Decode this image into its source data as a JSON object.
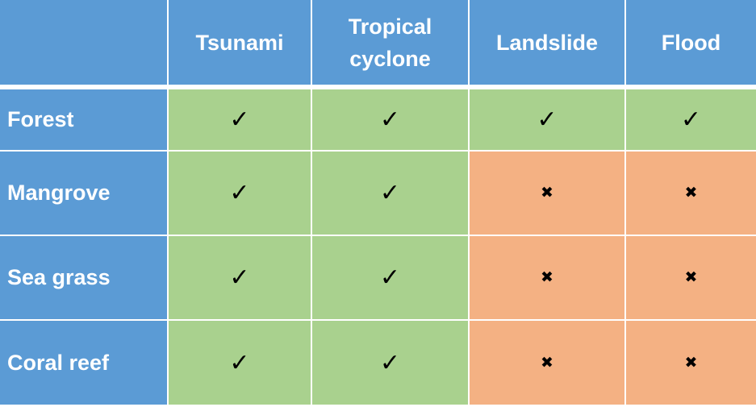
{
  "header": {
    "columns": [
      "Tsunami",
      "Tropical cyclone",
      "Landslide",
      "Flood"
    ],
    "color": "#5b9bd5"
  },
  "rows": [
    {
      "label": "Forest",
      "cells": [
        {
          "mark": "✓",
          "color": "#a9d18e"
        },
        {
          "mark": "✓",
          "color": "#a9d18e"
        },
        {
          "mark": "✓",
          "color": "#a9d18e"
        },
        {
          "mark": "✓",
          "color": "#a9d18e"
        }
      ]
    },
    {
      "label": "Mangrove",
      "cells": [
        {
          "mark": "✓",
          "color": "#a9d18e"
        },
        {
          "mark": "✓",
          "color": "#a9d18e"
        },
        {
          "mark": "✖",
          "color": "#f4b183"
        },
        {
          "mark": "✖",
          "color": "#f4b183"
        }
      ]
    },
    {
      "label": "Sea grass",
      "cells": [
        {
          "mark": "✓",
          "color": "#a9d18e"
        },
        {
          "mark": "✓",
          "color": "#a9d18e"
        },
        {
          "mark": "✖",
          "color": "#f4b183"
        },
        {
          "mark": "✖",
          "color": "#f4b183"
        }
      ]
    },
    {
      "label": "Coral reef",
      "cells": [
        {
          "mark": "✓",
          "color": "#a9d18e"
        },
        {
          "mark": "✓",
          "color": "#a9d18e"
        },
        {
          "mark": "✖",
          "color": "#f4b183"
        },
        {
          "mark": "✖",
          "color": "#f4b183"
        }
      ]
    }
  ]
}
